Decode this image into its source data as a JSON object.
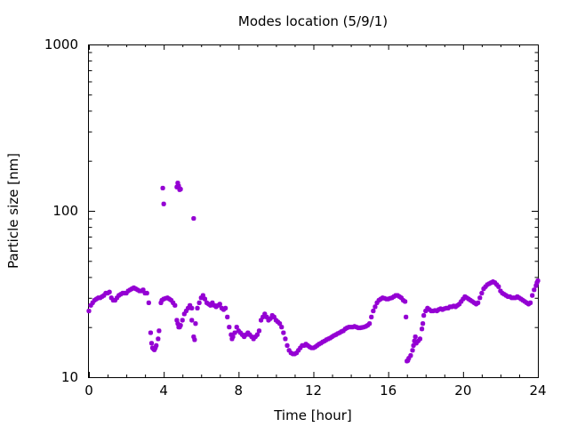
{
  "chart_data": {
    "type": "scatter",
    "title": "Modes location (5/9/1)",
    "xlabel": "Time [hour]",
    "ylabel": "Particle size [nm]",
    "xlim": [
      0,
      24
    ],
    "ylim": [
      10,
      1000
    ],
    "yscale": "log",
    "x_ticks": [
      0,
      4,
      8,
      12,
      16,
      20,
      24
    ],
    "x_tick_labels": [
      "0",
      "4",
      "8",
      "12",
      "16",
      "20",
      "24"
    ],
    "y_ticks": [
      10,
      100,
      1000
    ],
    "y_tick_labels": [
      "10",
      "100",
      "1000"
    ],
    "grid": false,
    "marker_color": "#9400D3",
    "series": [
      {
        "points": [
          [
            0.0,
            25
          ],
          [
            0.1,
            27
          ],
          [
            0.2,
            28
          ],
          [
            0.3,
            29
          ],
          [
            0.4,
            29.5
          ],
          [
            0.5,
            30
          ],
          [
            0.6,
            30
          ],
          [
            0.7,
            30.5
          ],
          [
            0.8,
            31
          ],
          [
            0.9,
            32
          ],
          [
            1.0,
            32
          ],
          [
            1.1,
            32.5
          ],
          [
            1.2,
            30
          ],
          [
            1.3,
            29
          ],
          [
            1.4,
            29
          ],
          [
            1.5,
            30
          ],
          [
            1.6,
            31
          ],
          [
            1.7,
            31.5
          ],
          [
            1.8,
            32
          ],
          [
            1.9,
            32
          ],
          [
            2.0,
            32
          ],
          [
            2.1,
            33
          ],
          [
            2.2,
            33.5
          ],
          [
            2.3,
            34
          ],
          [
            2.4,
            34.5
          ],
          [
            2.5,
            34
          ],
          [
            2.6,
            33.5
          ],
          [
            2.7,
            33
          ],
          [
            2.8,
            33
          ],
          [
            2.9,
            33.5
          ],
          [
            3.0,
            32
          ],
          [
            3.1,
            32
          ],
          [
            3.2,
            28
          ],
          [
            3.3,
            18.5
          ],
          [
            3.35,
            16
          ],
          [
            3.4,
            15
          ],
          [
            3.45,
            14.8
          ],
          [
            3.5,
            14.6
          ],
          [
            3.55,
            15
          ],
          [
            3.6,
            15.5
          ],
          [
            3.7,
            17
          ],
          [
            3.75,
            19
          ],
          [
            3.85,
            28
          ],
          [
            3.9,
            29
          ],
          [
            4.0,
            29.5
          ],
          [
            4.1,
            29.8
          ],
          [
            4.2,
            30
          ],
          [
            4.3,
            29.5
          ],
          [
            4.4,
            29
          ],
          [
            4.5,
            28
          ],
          [
            4.6,
            27
          ],
          [
            4.7,
            22
          ],
          [
            4.75,
            21
          ],
          [
            4.8,
            20
          ],
          [
            4.85,
            20
          ],
          [
            4.9,
            20.5
          ],
          [
            5.0,
            22
          ],
          [
            5.1,
            24
          ],
          [
            5.2,
            25
          ],
          [
            5.3,
            26
          ],
          [
            5.4,
            27
          ],
          [
            5.5,
            26
          ],
          [
            5.5,
            22
          ],
          [
            5.6,
            17.5
          ],
          [
            5.65,
            16.8
          ],
          [
            5.7,
            21
          ],
          [
            5.8,
            26
          ],
          [
            5.9,
            28
          ],
          [
            6.0,
            30
          ],
          [
            6.1,
            31
          ],
          [
            6.2,
            29.5
          ],
          [
            6.3,
            28
          ],
          [
            6.4,
            27.5
          ],
          [
            6.5,
            27
          ],
          [
            6.6,
            28
          ],
          [
            6.7,
            27
          ],
          [
            6.8,
            26.5
          ],
          [
            6.9,
            27
          ],
          [
            7.0,
            27.5
          ],
          [
            7.1,
            26
          ],
          [
            7.2,
            25.5
          ],
          [
            7.3,
            26
          ],
          [
            7.4,
            23
          ],
          [
            7.5,
            20
          ],
          [
            7.6,
            18
          ],
          [
            7.65,
            17
          ],
          [
            7.7,
            17.5
          ],
          [
            7.8,
            18.5
          ],
          [
            7.9,
            20
          ],
          [
            8.0,
            19
          ],
          [
            8.1,
            18.5
          ],
          [
            8.2,
            18
          ],
          [
            8.3,
            17.5
          ],
          [
            8.4,
            18
          ],
          [
            8.5,
            18.5
          ],
          [
            8.6,
            18
          ],
          [
            8.7,
            17.5
          ],
          [
            8.8,
            17
          ],
          [
            8.9,
            17.5
          ],
          [
            9.0,
            18
          ],
          [
            9.1,
            19
          ],
          [
            9.2,
            22
          ],
          [
            9.3,
            23
          ],
          [
            9.4,
            24
          ],
          [
            9.5,
            23
          ],
          [
            9.6,
            22
          ],
          [
            9.7,
            22.5
          ],
          [
            9.8,
            23.5
          ],
          [
            9.9,
            23
          ],
          [
            10.0,
            22
          ],
          [
            10.1,
            21.5
          ],
          [
            10.2,
            21
          ],
          [
            10.3,
            20
          ],
          [
            10.4,
            18.5
          ],
          [
            10.5,
            17
          ],
          [
            10.6,
            15.5
          ],
          [
            10.7,
            14.5
          ],
          [
            10.8,
            14
          ],
          [
            10.9,
            13.8
          ],
          [
            11.0,
            13.8
          ],
          [
            11.1,
            14
          ],
          [
            11.2,
            14.5
          ],
          [
            11.3,
            15
          ],
          [
            11.4,
            15.5
          ],
          [
            11.5,
            15.5
          ],
          [
            11.6,
            15.8
          ],
          [
            11.7,
            15.5
          ],
          [
            11.8,
            15.2
          ],
          [
            11.9,
            15
          ],
          [
            12.0,
            15
          ],
          [
            12.1,
            15.2
          ],
          [
            12.2,
            15.5
          ],
          [
            12.3,
            15.8
          ],
          [
            12.4,
            16
          ],
          [
            12.5,
            16.3
          ],
          [
            12.6,
            16.5
          ],
          [
            12.7,
            16.8
          ],
          [
            12.8,
            17
          ],
          [
            12.9,
            17.2
          ],
          [
            13.0,
            17.5
          ],
          [
            13.1,
            17.8
          ],
          [
            13.2,
            18
          ],
          [
            13.3,
            18.3
          ],
          [
            13.4,
            18.5
          ],
          [
            13.5,
            18.8
          ],
          [
            13.6,
            19
          ],
          [
            13.7,
            19.5
          ],
          [
            13.8,
            19.8
          ],
          [
            13.9,
            20
          ],
          [
            14.0,
            20
          ],
          [
            14.1,
            20
          ],
          [
            14.2,
            20.2
          ],
          [
            14.3,
            20
          ],
          [
            14.4,
            19.8
          ],
          [
            14.5,
            19.8
          ],
          [
            14.6,
            19.9
          ],
          [
            14.7,
            20
          ],
          [
            14.8,
            20.2
          ],
          [
            14.9,
            20.5
          ],
          [
            15.0,
            21
          ],
          [
            15.1,
            23
          ],
          [
            15.2,
            25
          ],
          [
            15.3,
            26.5
          ],
          [
            15.4,
            28
          ],
          [
            15.5,
            29
          ],
          [
            15.6,
            29.5
          ],
          [
            15.7,
            30
          ],
          [
            15.8,
            29.8
          ],
          [
            15.9,
            29.5
          ],
          [
            16.0,
            29.5
          ],
          [
            16.1,
            29.8
          ],
          [
            16.2,
            30
          ],
          [
            16.3,
            30.5
          ],
          [
            16.4,
            31
          ],
          [
            16.5,
            31
          ],
          [
            16.6,
            30.5
          ],
          [
            16.7,
            30
          ],
          [
            16.8,
            29
          ],
          [
            16.9,
            28.5
          ],
          [
            16.95,
            23
          ],
          [
            17.0,
            12.5
          ],
          [
            17.05,
            12.6
          ],
          [
            17.1,
            13
          ],
          [
            17.2,
            13.5
          ],
          [
            17.3,
            14.5
          ],
          [
            17.35,
            15.5
          ],
          [
            17.4,
            16.5
          ],
          [
            17.45,
            17.5
          ],
          [
            17.5,
            16
          ],
          [
            17.6,
            16.5
          ],
          [
            17.7,
            17
          ],
          [
            17.8,
            19.5
          ],
          [
            17.85,
            21
          ],
          [
            17.9,
            23.5
          ],
          [
            18.0,
            25
          ],
          [
            18.1,
            26
          ],
          [
            18.2,
            25.5
          ],
          [
            18.3,
            25
          ],
          [
            18.4,
            25
          ],
          [
            18.5,
            25.2
          ],
          [
            18.6,
            25
          ],
          [
            18.7,
            25.5
          ],
          [
            18.8,
            25.8
          ],
          [
            18.9,
            25.5
          ],
          [
            19.0,
            25.8
          ],
          [
            19.1,
            26
          ],
          [
            19.2,
            26
          ],
          [
            19.3,
            26.5
          ],
          [
            19.4,
            26.5
          ],
          [
            19.5,
            26.8
          ],
          [
            19.6,
            26.5
          ],
          [
            19.7,
            27
          ],
          [
            19.8,
            27.5
          ],
          [
            19.9,
            28.5
          ],
          [
            20.0,
            29.5
          ],
          [
            20.1,
            30.5
          ],
          [
            20.2,
            30
          ],
          [
            20.3,
            29.5
          ],
          [
            20.4,
            29
          ],
          [
            20.5,
            28.5
          ],
          [
            20.6,
            28
          ],
          [
            20.7,
            27.5
          ],
          [
            20.8,
            28
          ],
          [
            20.9,
            30
          ],
          [
            21.0,
            32
          ],
          [
            21.1,
            34
          ],
          [
            21.2,
            35
          ],
          [
            21.3,
            36
          ],
          [
            21.4,
            36.5
          ],
          [
            21.5,
            37
          ],
          [
            21.6,
            37.5
          ],
          [
            21.7,
            37
          ],
          [
            21.8,
            36
          ],
          [
            21.9,
            35
          ],
          [
            22.0,
            33
          ],
          [
            22.1,
            32
          ],
          [
            22.2,
            31.5
          ],
          [
            22.3,
            31
          ],
          [
            22.4,
            30.5
          ],
          [
            22.5,
            30.5
          ],
          [
            22.6,
            30
          ],
          [
            22.7,
            30
          ],
          [
            22.8,
            30
          ],
          [
            22.9,
            30.5
          ],
          [
            23.0,
            30
          ],
          [
            23.1,
            29.5
          ],
          [
            23.2,
            29
          ],
          [
            23.3,
            28.5
          ],
          [
            23.4,
            28
          ],
          [
            23.5,
            27.5
          ],
          [
            23.6,
            28
          ],
          [
            23.7,
            31
          ],
          [
            23.8,
            33.5
          ],
          [
            23.9,
            35.5
          ],
          [
            23.95,
            37
          ],
          [
            24.0,
            38
          ],
          [
            3.95,
            137
          ],
          [
            4.0,
            110
          ],
          [
            4.7,
            139
          ],
          [
            4.75,
            147
          ],
          [
            4.8,
            141
          ],
          [
            4.85,
            134
          ],
          [
            4.9,
            135
          ],
          [
            5.6,
            90
          ]
        ]
      }
    ]
  }
}
